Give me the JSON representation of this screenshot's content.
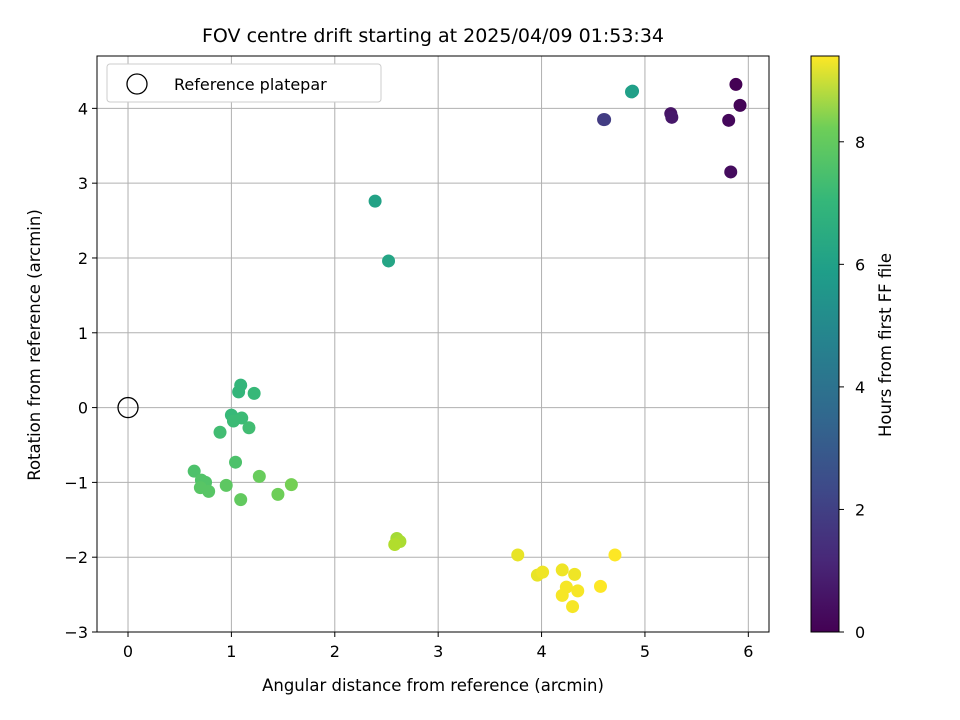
{
  "chart_data": {
    "type": "scatter",
    "title": "FOV centre drift starting at 2025/04/09 01:53:34",
    "xlabel": "Angular distance from reference (arcmin)",
    "ylabel": "Rotation from reference (arcmin)",
    "xlim": [
      -0.3,
      6.2
    ],
    "ylim": [
      -3.0,
      4.7
    ],
    "x_ticks": [
      "0",
      "1",
      "2",
      "3",
      "4",
      "5",
      "6"
    ],
    "y_ticks": [
      "−3",
      "−2",
      "−1",
      "0",
      "1",
      "2",
      "3",
      "4"
    ],
    "grid": true,
    "legend": {
      "location": "upper left",
      "entries": [
        "Reference platepar"
      ]
    },
    "reference_point": {
      "x": 0,
      "y": 0
    },
    "colorbar": {
      "label": "Hours from first FF file",
      "colormap": "viridis",
      "range": [
        0,
        9.4
      ],
      "ticks": [
        "0",
        "2",
        "4",
        "6",
        "8"
      ]
    },
    "points": [
      {
        "x": 5.88,
        "y": 4.32,
        "hours": 0.0
      },
      {
        "x": 5.92,
        "y": 4.04,
        "hours": 0.1
      },
      {
        "x": 5.81,
        "y": 3.84,
        "hours": 0.2
      },
      {
        "x": 5.83,
        "y": 3.15,
        "hours": 0.3
      },
      {
        "x": 5.25,
        "y": 3.93,
        "hours": 0.5
      },
      {
        "x": 5.26,
        "y": 3.88,
        "hours": 0.6
      },
      {
        "x": 4.6,
        "y": 3.85,
        "hours": 1.6
      },
      {
        "x": 4.61,
        "y": 3.85,
        "hours": 1.7
      },
      {
        "x": 4.88,
        "y": 4.23,
        "hours": 5.2
      },
      {
        "x": 4.87,
        "y": 4.22,
        "hours": 5.3
      },
      {
        "x": 2.39,
        "y": 2.76,
        "hours": 5.4
      },
      {
        "x": 2.52,
        "y": 1.96,
        "hours": 5.5
      },
      {
        "x": 1.09,
        "y": 0.3,
        "hours": 6.2
      },
      {
        "x": 1.07,
        "y": 0.21,
        "hours": 6.2
      },
      {
        "x": 1.22,
        "y": 0.19,
        "hours": 6.3
      },
      {
        "x": 1.0,
        "y": -0.1,
        "hours": 6.3
      },
      {
        "x": 1.02,
        "y": -0.18,
        "hours": 6.4
      },
      {
        "x": 1.1,
        "y": -0.14,
        "hours": 6.4
      },
      {
        "x": 1.17,
        "y": -0.27,
        "hours": 6.5
      },
      {
        "x": 0.89,
        "y": -0.33,
        "hours": 6.5
      },
      {
        "x": 1.04,
        "y": -0.73,
        "hours": 6.7
      },
      {
        "x": 0.64,
        "y": -0.85,
        "hours": 6.7
      },
      {
        "x": 0.71,
        "y": -0.97,
        "hours": 6.8
      },
      {
        "x": 0.75,
        "y": -1.0,
        "hours": 6.8
      },
      {
        "x": 0.7,
        "y": -1.07,
        "hours": 6.9
      },
      {
        "x": 0.78,
        "y": -1.12,
        "hours": 6.9
      },
      {
        "x": 0.95,
        "y": -1.04,
        "hours": 7.0
      },
      {
        "x": 1.09,
        "y": -1.23,
        "hours": 7.1
      },
      {
        "x": 1.27,
        "y": -0.92,
        "hours": 7.2
      },
      {
        "x": 1.45,
        "y": -1.16,
        "hours": 7.3
      },
      {
        "x": 1.58,
        "y": -1.03,
        "hours": 7.4
      },
      {
        "x": 2.6,
        "y": -1.75,
        "hours": 8.1
      },
      {
        "x": 2.63,
        "y": -1.79,
        "hours": 8.2
      },
      {
        "x": 2.58,
        "y": -1.83,
        "hours": 8.3
      },
      {
        "x": 3.77,
        "y": -1.97,
        "hours": 9.1
      },
      {
        "x": 3.96,
        "y": -2.24,
        "hours": 9.1
      },
      {
        "x": 4.01,
        "y": -2.2,
        "hours": 9.2
      },
      {
        "x": 4.2,
        "y": -2.17,
        "hours": 9.2
      },
      {
        "x": 4.32,
        "y": -2.23,
        "hours": 9.2
      },
      {
        "x": 4.24,
        "y": -2.4,
        "hours": 9.3
      },
      {
        "x": 4.35,
        "y": -2.45,
        "hours": 9.3
      },
      {
        "x": 4.2,
        "y": -2.51,
        "hours": 9.3
      },
      {
        "x": 4.3,
        "y": -2.66,
        "hours": 9.3
      },
      {
        "x": 4.57,
        "y": -2.39,
        "hours": 9.4
      },
      {
        "x": 4.71,
        "y": -1.97,
        "hours": 9.4
      }
    ]
  }
}
